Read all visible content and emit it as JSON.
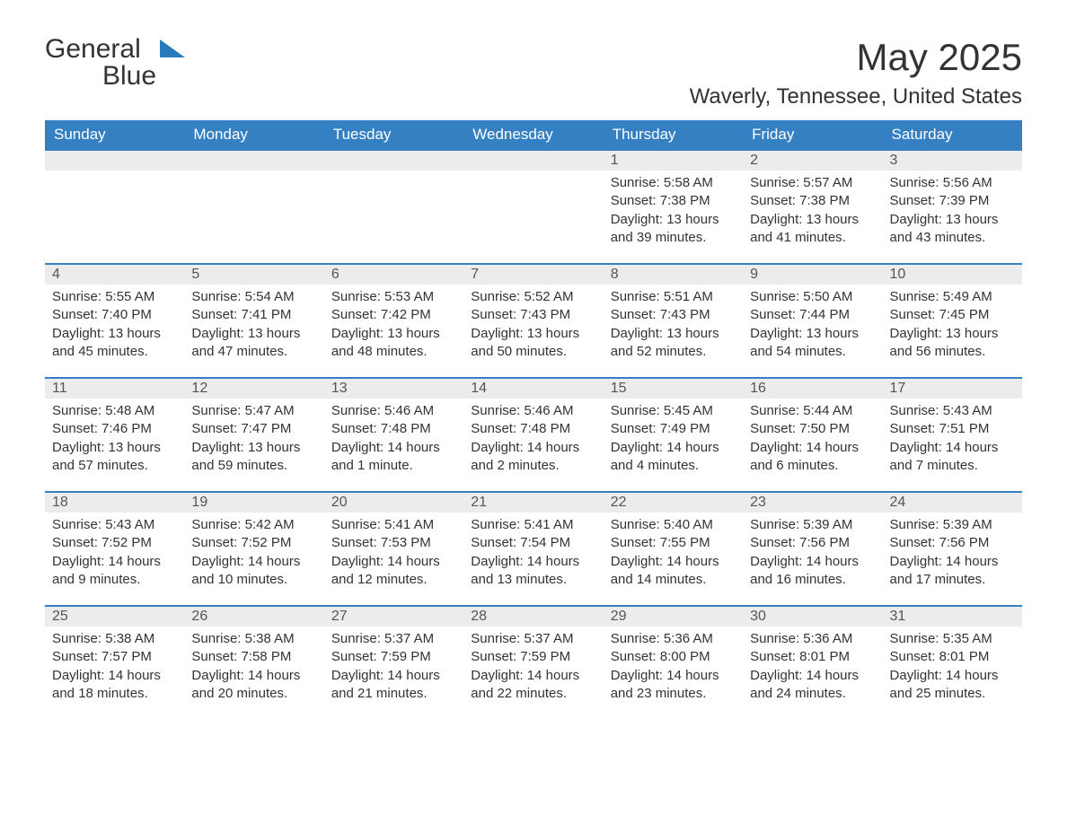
{
  "logo": {
    "word1": "General",
    "word2": "Blue"
  },
  "title": "May 2025",
  "location": "Waverly, Tennessee, United States",
  "colors": {
    "header_bg": "#3580c2",
    "header_text": "#ffffff",
    "daynum_bg": "#ececec",
    "border": "#3580c2",
    "text": "#333333",
    "logo_blue": "#2a7ab9",
    "page_bg": "#ffffff"
  },
  "fonts": {
    "title_pt": 42,
    "location_pt": 24,
    "header_pt": 17,
    "daynum_pt": 16,
    "body_pt": 15
  },
  "labels": {
    "sunrise_prefix": "Sunrise: ",
    "sunset_prefix": "Sunset: ",
    "daylight_prefix": "Daylight: "
  },
  "day_headers": [
    "Sunday",
    "Monday",
    "Tuesday",
    "Wednesday",
    "Thursday",
    "Friday",
    "Saturday"
  ],
  "weeks": [
    [
      null,
      null,
      null,
      null,
      {
        "n": "1",
        "sunrise": "5:58 AM",
        "sunset": "7:38 PM",
        "daylight": "13 hours and 39 minutes."
      },
      {
        "n": "2",
        "sunrise": "5:57 AM",
        "sunset": "7:38 PM",
        "daylight": "13 hours and 41 minutes."
      },
      {
        "n": "3",
        "sunrise": "5:56 AM",
        "sunset": "7:39 PM",
        "daylight": "13 hours and 43 minutes."
      }
    ],
    [
      {
        "n": "4",
        "sunrise": "5:55 AM",
        "sunset": "7:40 PM",
        "daylight": "13 hours and 45 minutes."
      },
      {
        "n": "5",
        "sunrise": "5:54 AM",
        "sunset": "7:41 PM",
        "daylight": "13 hours and 47 minutes."
      },
      {
        "n": "6",
        "sunrise": "5:53 AM",
        "sunset": "7:42 PM",
        "daylight": "13 hours and 48 minutes."
      },
      {
        "n": "7",
        "sunrise": "5:52 AM",
        "sunset": "7:43 PM",
        "daylight": "13 hours and 50 minutes."
      },
      {
        "n": "8",
        "sunrise": "5:51 AM",
        "sunset": "7:43 PM",
        "daylight": "13 hours and 52 minutes."
      },
      {
        "n": "9",
        "sunrise": "5:50 AM",
        "sunset": "7:44 PM",
        "daylight": "13 hours and 54 minutes."
      },
      {
        "n": "10",
        "sunrise": "5:49 AM",
        "sunset": "7:45 PM",
        "daylight": "13 hours and 56 minutes."
      }
    ],
    [
      {
        "n": "11",
        "sunrise": "5:48 AM",
        "sunset": "7:46 PM",
        "daylight": "13 hours and 57 minutes."
      },
      {
        "n": "12",
        "sunrise": "5:47 AM",
        "sunset": "7:47 PM",
        "daylight": "13 hours and 59 minutes."
      },
      {
        "n": "13",
        "sunrise": "5:46 AM",
        "sunset": "7:48 PM",
        "daylight": "14 hours and 1 minute."
      },
      {
        "n": "14",
        "sunrise": "5:46 AM",
        "sunset": "7:48 PM",
        "daylight": "14 hours and 2 minutes."
      },
      {
        "n": "15",
        "sunrise": "5:45 AM",
        "sunset": "7:49 PM",
        "daylight": "14 hours and 4 minutes."
      },
      {
        "n": "16",
        "sunrise": "5:44 AM",
        "sunset": "7:50 PM",
        "daylight": "14 hours and 6 minutes."
      },
      {
        "n": "17",
        "sunrise": "5:43 AM",
        "sunset": "7:51 PM",
        "daylight": "14 hours and 7 minutes."
      }
    ],
    [
      {
        "n": "18",
        "sunrise": "5:43 AM",
        "sunset": "7:52 PM",
        "daylight": "14 hours and 9 minutes."
      },
      {
        "n": "19",
        "sunrise": "5:42 AM",
        "sunset": "7:52 PM",
        "daylight": "14 hours and 10 minutes."
      },
      {
        "n": "20",
        "sunrise": "5:41 AM",
        "sunset": "7:53 PM",
        "daylight": "14 hours and 12 minutes."
      },
      {
        "n": "21",
        "sunrise": "5:41 AM",
        "sunset": "7:54 PM",
        "daylight": "14 hours and 13 minutes."
      },
      {
        "n": "22",
        "sunrise": "5:40 AM",
        "sunset": "7:55 PM",
        "daylight": "14 hours and 14 minutes."
      },
      {
        "n": "23",
        "sunrise": "5:39 AM",
        "sunset": "7:56 PM",
        "daylight": "14 hours and 16 minutes."
      },
      {
        "n": "24",
        "sunrise": "5:39 AM",
        "sunset": "7:56 PM",
        "daylight": "14 hours and 17 minutes."
      }
    ],
    [
      {
        "n": "25",
        "sunrise": "5:38 AM",
        "sunset": "7:57 PM",
        "daylight": "14 hours and 18 minutes."
      },
      {
        "n": "26",
        "sunrise": "5:38 AM",
        "sunset": "7:58 PM",
        "daylight": "14 hours and 20 minutes."
      },
      {
        "n": "27",
        "sunrise": "5:37 AM",
        "sunset": "7:59 PM",
        "daylight": "14 hours and 21 minutes."
      },
      {
        "n": "28",
        "sunrise": "5:37 AM",
        "sunset": "7:59 PM",
        "daylight": "14 hours and 22 minutes."
      },
      {
        "n": "29",
        "sunrise": "5:36 AM",
        "sunset": "8:00 PM",
        "daylight": "14 hours and 23 minutes."
      },
      {
        "n": "30",
        "sunrise": "5:36 AM",
        "sunset": "8:01 PM",
        "daylight": "14 hours and 24 minutes."
      },
      {
        "n": "31",
        "sunrise": "5:35 AM",
        "sunset": "8:01 PM",
        "daylight": "14 hours and 25 minutes."
      }
    ]
  ]
}
